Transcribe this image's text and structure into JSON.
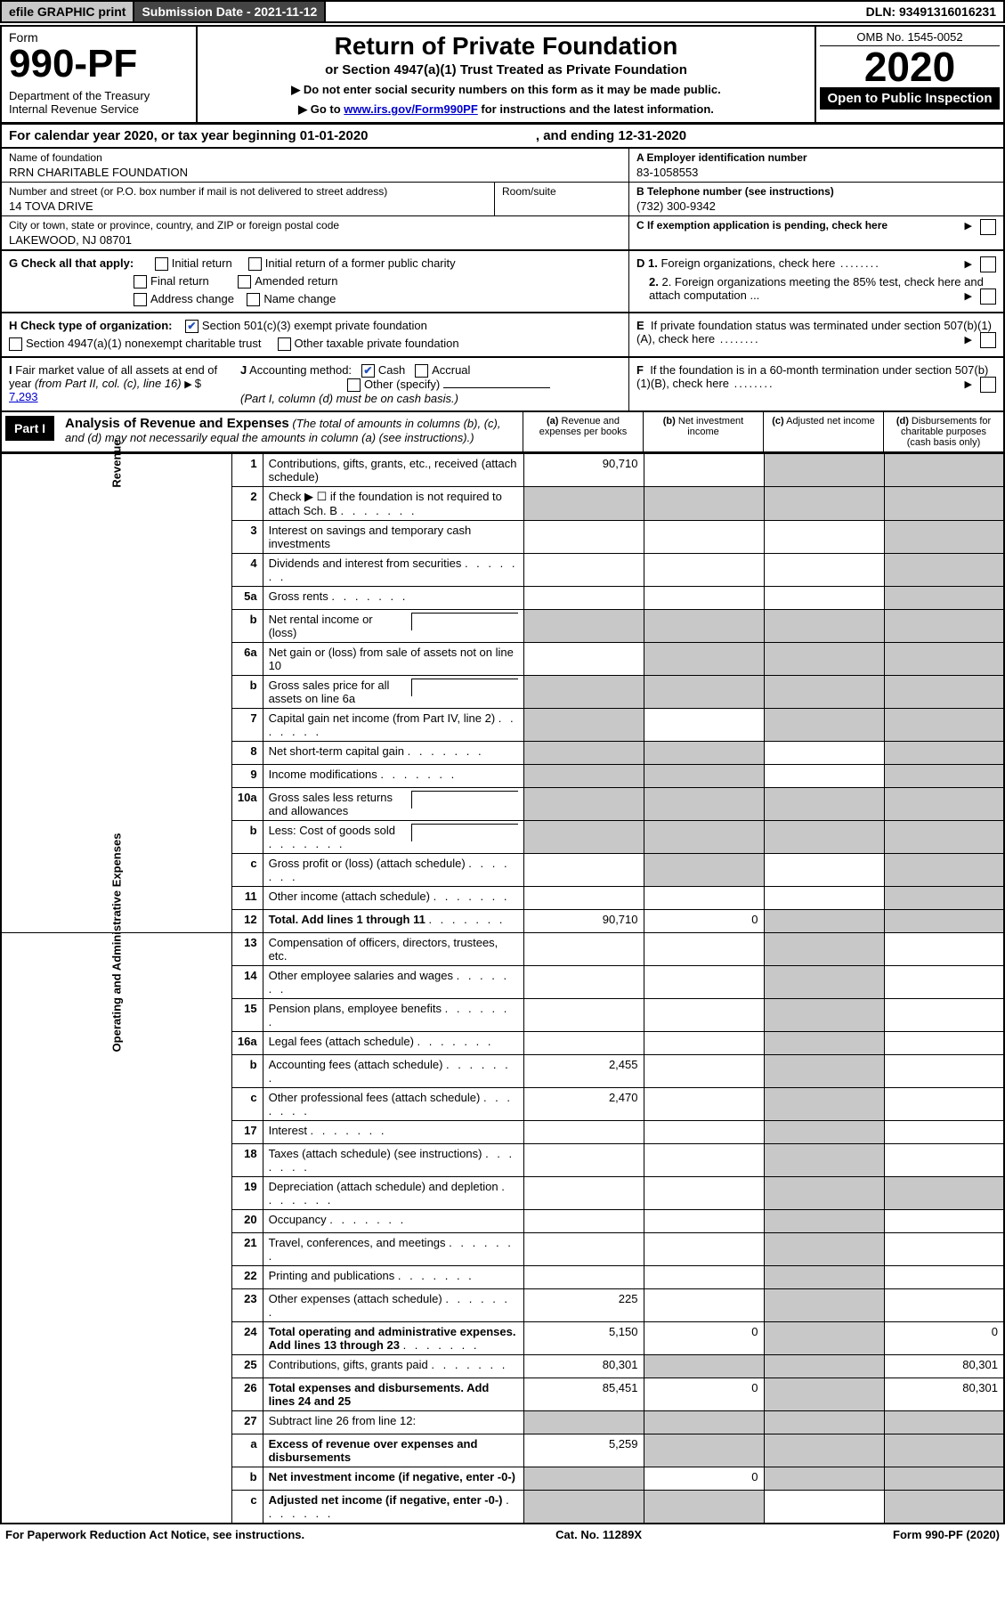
{
  "topbar": {
    "efile": "efile GRAPHIC print",
    "subdate_label": "Submission Date - 2021-11-12",
    "dln": "DLN: 93491316016231"
  },
  "header": {
    "form_label": "Form",
    "form_no": "990-PF",
    "dept": "Department of the Treasury\nInternal Revenue Service",
    "title": "Return of Private Foundation",
    "subtitle": "or Section 4947(a)(1) Trust Treated as Private Foundation",
    "instr1": "▶ Do not enter social security numbers on this form as it may be made public.",
    "instr2_pre": "▶ Go to ",
    "instr2_link": "www.irs.gov/Form990PF",
    "instr2_post": " for instructions and the latest information.",
    "omb": "OMB No. 1545-0052",
    "year": "2020",
    "open": "Open to Public Inspection"
  },
  "calyear": {
    "text_a": "For calendar year 2020, or tax year beginning 01-01-2020",
    "text_b": ", and ending 12-31-2020"
  },
  "entity": {
    "name_label": "Name of foundation",
    "name": "RRN CHARITABLE FOUNDATION",
    "addr_label": "Number and street (or P.O. box number if mail is not delivered to street address)",
    "addr": "14 TOVA DRIVE",
    "room_label": "Room/suite",
    "city_label": "City or town, state or province, country, and ZIP or foreign postal code",
    "city": "LAKEWOOD, NJ  08701",
    "ein_label": "A Employer identification number",
    "ein": "83-1058553",
    "tel_label": "B Telephone number (see instructions)",
    "tel": "(732) 300-9342",
    "c_label": "C If exemption application is pending, check here"
  },
  "checks": {
    "g_label": "G Check all that apply:",
    "g_items": [
      "Initial return",
      "Initial return of a former public charity",
      "Final return",
      "Amended return",
      "Address change",
      "Name change"
    ],
    "h_label": "H Check type of organization:",
    "h_item1": "Section 501(c)(3) exempt private foundation",
    "h_item2": "Section 4947(a)(1) nonexempt charitable trust",
    "h_item3": "Other taxable private foundation",
    "i_label": "I Fair market value of all assets at end of year (from Part II, col. (c), line 16)",
    "i_val": "7,293",
    "j_label": "J Accounting method:",
    "j_cash": "Cash",
    "j_accrual": "Accrual",
    "j_other": "Other (specify)",
    "j_note": "(Part I, column (d) must be on cash basis.)",
    "d1": "D 1. Foreign organizations, check here",
    "d2": "2. Foreign organizations meeting the 85% test, check here and attach computation ...",
    "e_label": "E  If private foundation status was terminated under section 507(b)(1)(A), check here",
    "f_label": "F  If the foundation is in a 60-month termination under section 507(b)(1)(B), check here"
  },
  "part1": {
    "label": "Part I",
    "title": "Analysis of Revenue and Expenses",
    "title_note": " (The total of amounts in columns (b), (c), and (d) may not necessarily equal the amounts in column (a) (see instructions).)",
    "col_a": "(a) Revenue and expenses per books",
    "col_b": "(b) Net investment income",
    "col_c": "(c) Adjusted net income",
    "col_d": "(d) Disbursements for charitable purposes (cash basis only)",
    "rot_revenue": "Revenue",
    "rot_expenses": "Operating and Administrative Expenses"
  },
  "rows": [
    {
      "n": "1",
      "d": "Contributions, gifts, grants, etc., received (attach schedule)",
      "a": "90,710",
      "c_shade": true,
      "d_shade": true
    },
    {
      "n": "2",
      "d": "Check ▶ ☐ if the foundation is not required to attach Sch. B",
      "a_shade": true,
      "b_shade": true,
      "c_shade": true,
      "d_shade": true,
      "dots": true
    },
    {
      "n": "3",
      "d": "Interest on savings and temporary cash investments",
      "d_shade": true
    },
    {
      "n": "4",
      "d": "Dividends and interest from securities",
      "dots": true,
      "d_shade": true
    },
    {
      "n": "5a",
      "d": "Gross rents",
      "dots": true,
      "d_shade": true
    },
    {
      "n": "b",
      "d": "Net rental income or (loss)",
      "subbox": true,
      "a_shade": true,
      "b_shade": true,
      "c_shade": true,
      "d_shade": true
    },
    {
      "n": "6a",
      "d": "Net gain or (loss) from sale of assets not on line 10",
      "b_shade": true,
      "c_shade": true,
      "d_shade": true
    },
    {
      "n": "b",
      "d": "Gross sales price for all assets on line 6a",
      "subbox": true,
      "a_shade": true,
      "b_shade": true,
      "c_shade": true,
      "d_shade": true
    },
    {
      "n": "7",
      "d": "Capital gain net income (from Part IV, line 2)",
      "dots": true,
      "a_shade": true,
      "c_shade": true,
      "d_shade": true
    },
    {
      "n": "8",
      "d": "Net short-term capital gain",
      "dots": true,
      "a_shade": true,
      "b_shade": true,
      "d_shade": true
    },
    {
      "n": "9",
      "d": "Income modifications",
      "dots": true,
      "a_shade": true,
      "b_shade": true,
      "d_shade": true
    },
    {
      "n": "10a",
      "d": "Gross sales less returns and allowances",
      "subbox": true,
      "a_shade": true,
      "b_shade": true,
      "c_shade": true,
      "d_shade": true
    },
    {
      "n": "b",
      "d": "Less: Cost of goods sold",
      "dots": true,
      "subbox": true,
      "a_shade": true,
      "b_shade": true,
      "c_shade": true,
      "d_shade": true
    },
    {
      "n": "c",
      "d": "Gross profit or (loss) (attach schedule)",
      "dots": true,
      "b_shade": true,
      "d_shade": true
    },
    {
      "n": "11",
      "d": "Other income (attach schedule)",
      "dots": true,
      "d_shade": true
    },
    {
      "n": "12",
      "d": "Total. Add lines 1 through 11",
      "dots": true,
      "bold": true,
      "a": "90,710",
      "b": "0",
      "c_shade": true,
      "d_shade": true
    },
    {
      "n": "13",
      "d": "Compensation of officers, directors, trustees, etc.",
      "c_shade": true
    },
    {
      "n": "14",
      "d": "Other employee salaries and wages",
      "dots": true,
      "c_shade": true
    },
    {
      "n": "15",
      "d": "Pension plans, employee benefits",
      "dots": true,
      "c_shade": true
    },
    {
      "n": "16a",
      "d": "Legal fees (attach schedule)",
      "dots": true,
      "c_shade": true
    },
    {
      "n": "b",
      "d": "Accounting fees (attach schedule)",
      "dots": true,
      "a": "2,455",
      "c_shade": true
    },
    {
      "n": "c",
      "d": "Other professional fees (attach schedule)",
      "dots": true,
      "a": "2,470",
      "c_shade": true
    },
    {
      "n": "17",
      "d": "Interest",
      "dots": true,
      "c_shade": true
    },
    {
      "n": "18",
      "d": "Taxes (attach schedule) (see instructions)",
      "dots": true,
      "c_shade": true
    },
    {
      "n": "19",
      "d": "Depreciation (attach schedule) and depletion",
      "dots": true,
      "c_shade": true,
      "d_shade": true
    },
    {
      "n": "20",
      "d": "Occupancy",
      "dots": true,
      "c_shade": true
    },
    {
      "n": "21",
      "d": "Travel, conferences, and meetings",
      "dots": true,
      "c_shade": true
    },
    {
      "n": "22",
      "d": "Printing and publications",
      "dots": true,
      "c_shade": true
    },
    {
      "n": "23",
      "d": "Other expenses (attach schedule)",
      "dots": true,
      "a": "225",
      "c_shade": true
    },
    {
      "n": "24",
      "d": "Total operating and administrative expenses. Add lines 13 through 23",
      "dots": true,
      "bold": true,
      "a": "5,150",
      "b": "0",
      "c_shade": true,
      "dv": "0"
    },
    {
      "n": "25",
      "d": "Contributions, gifts, grants paid",
      "dots": true,
      "a": "80,301",
      "b_shade": true,
      "c_shade": true,
      "dv": "80,301"
    },
    {
      "n": "26",
      "d": "Total expenses and disbursements. Add lines 24 and 25",
      "bold": true,
      "a": "85,451",
      "b": "0",
      "c_shade": true,
      "dv": "80,301"
    },
    {
      "n": "27",
      "d": "Subtract line 26 from line 12:",
      "a_shade": true,
      "b_shade": true,
      "c_shade": true,
      "d_shade": true
    },
    {
      "n": "a",
      "d": "Excess of revenue over expenses and disbursements",
      "bold": true,
      "a": "5,259",
      "b_shade": true,
      "c_shade": true,
      "d_shade": true
    },
    {
      "n": "b",
      "d": "Net investment income (if negative, enter -0-)",
      "bold": true,
      "a_shade": true,
      "b": "0",
      "c_shade": true,
      "d_shade": true
    },
    {
      "n": "c",
      "d": "Adjusted net income (if negative, enter -0-)",
      "bold": true,
      "dots": true,
      "a_shade": true,
      "b_shade": true,
      "d_shade": true
    }
  ],
  "footer": {
    "left": "For Paperwork Reduction Act Notice, see instructions.",
    "mid": "Cat. No. 11289X",
    "right": "Form 990-PF (2020)"
  },
  "colors": {
    "shade": "#c8c8c8",
    "link": "#0000cc"
  }
}
